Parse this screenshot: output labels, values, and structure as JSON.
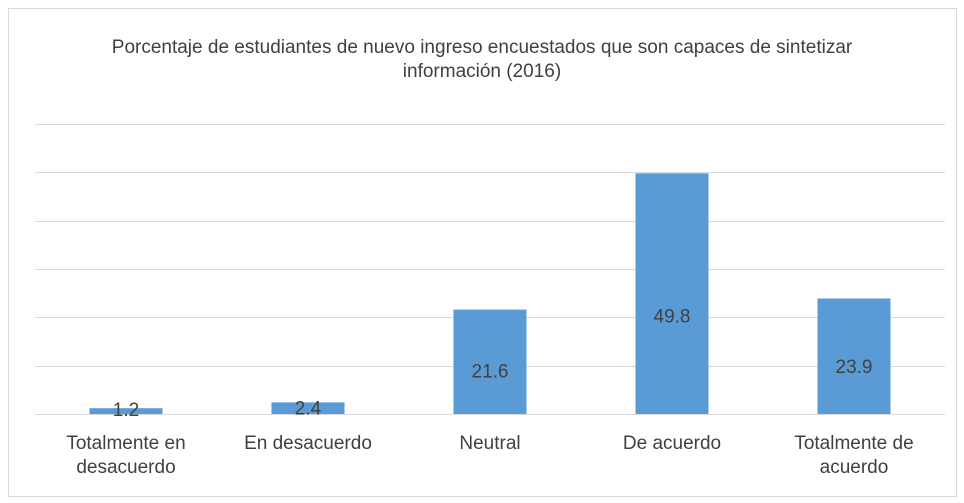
{
  "chart_data": {
    "type": "bar",
    "title": "Porcentaje de estudiantes de nuevo ingreso encuestados que son capaces de sintetizar información (2016)",
    "categories": [
      "Totalmente en desacuerdo",
      "En desacuerdo",
      "Neutral",
      "De acuerdo",
      "Totalmente de acuerdo"
    ],
    "values": [
      1.2,
      2.4,
      21.6,
      49.8,
      23.9
    ],
    "color": "#5b9bd5",
    "ylim": [
      0,
      60
    ],
    "yticks": [
      0,
      10,
      20,
      30,
      40,
      50,
      60
    ],
    "grid": true
  }
}
